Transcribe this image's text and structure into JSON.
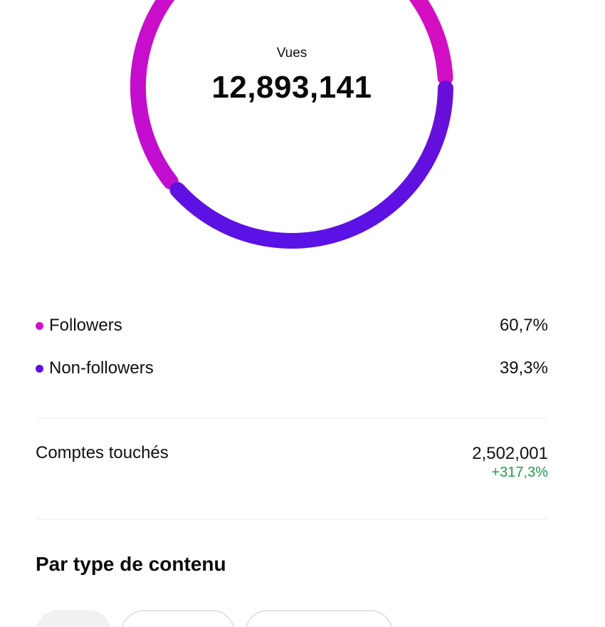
{
  "views": {
    "label": "Vues",
    "value": "12,893,141"
  },
  "chart_data": {
    "type": "pie",
    "series": [
      {
        "name": "Followers",
        "value": 60.7,
        "color": "#d10fc7"
      },
      {
        "name": "Non-followers",
        "value": 39.3,
        "color": "#5b0fe0"
      }
    ]
  },
  "audience": [
    {
      "label": "Followers",
      "percent": "60,7%",
      "color": "#d10fc7"
    },
    {
      "label": "Non-followers",
      "percent": "39,3%",
      "color": "#5b0fe0"
    }
  ],
  "reach": {
    "label": "Comptes touchés",
    "value": "2,502,001",
    "change": "+317,3%"
  },
  "content_type": {
    "title": "Par type de contenu"
  }
}
